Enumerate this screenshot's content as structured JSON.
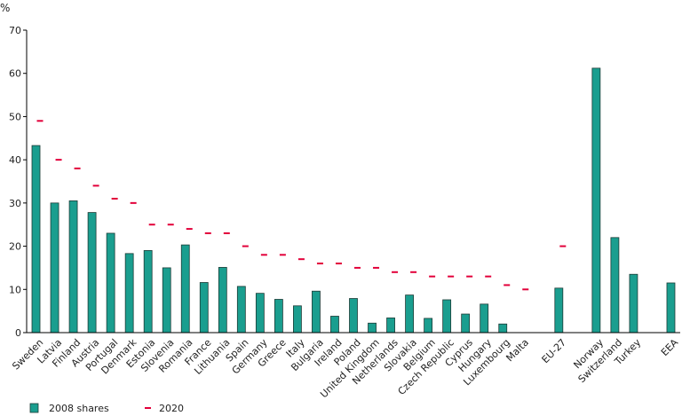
{
  "chart_data": {
    "type": "bar",
    "ylabel": "%",
    "ylim": [
      0,
      70
    ],
    "yticks": [
      0,
      10,
      20,
      30,
      40,
      50,
      60,
      70
    ],
    "grid": false,
    "legend_position": "bottom-left",
    "categories": [
      "Sweden",
      "Latvia",
      "Finland",
      "Austria",
      "Portugal",
      "Denmark",
      "Estonia",
      "Slovenia",
      "Romania",
      "France",
      "Lithuania",
      "Spain",
      "Germany",
      "Greece",
      "Italy",
      "Bulgaria",
      "Ireland",
      "Poland",
      "United Kingdom",
      "Netherlands",
      "Slovakia",
      "Belgium",
      "Czech Republic",
      "Cyprus",
      "Hungary",
      "Luxembourg",
      "Malta",
      "",
      "EU-27",
      "",
      "Norway",
      "Switzerland",
      "Turkey",
      "",
      "EEA"
    ],
    "series": [
      {
        "name": "2008 shares",
        "kind": "bar",
        "color": "#1a9e8f",
        "values": [
          43.3,
          30.0,
          30.5,
          27.8,
          23.0,
          18.3,
          19.0,
          15.0,
          20.3,
          11.6,
          15.1,
          10.7,
          9.1,
          7.7,
          6.2,
          9.6,
          3.8,
          7.9,
          2.2,
          3.4,
          8.7,
          3.3,
          7.6,
          4.3,
          6.6,
          2.0,
          0.0,
          null,
          10.3,
          null,
          61.2,
          22.0,
          13.5,
          null,
          11.5
        ]
      },
      {
        "name": "2020",
        "kind": "marker",
        "color": "#e2003a",
        "values": [
          49,
          40,
          38,
          34,
          31,
          30,
          25,
          25,
          24,
          23,
          23,
          20,
          18,
          18,
          17,
          16,
          16,
          15,
          15,
          14,
          14,
          13,
          13,
          13,
          13,
          11,
          10,
          null,
          20,
          null,
          null,
          null,
          null,
          null,
          null
        ]
      }
    ]
  },
  "colors": {
    "bar_fill": "#1a9e8f",
    "bar_stroke": "#1d3b36",
    "target_marker": "#e2003a",
    "axis": "#000000"
  }
}
